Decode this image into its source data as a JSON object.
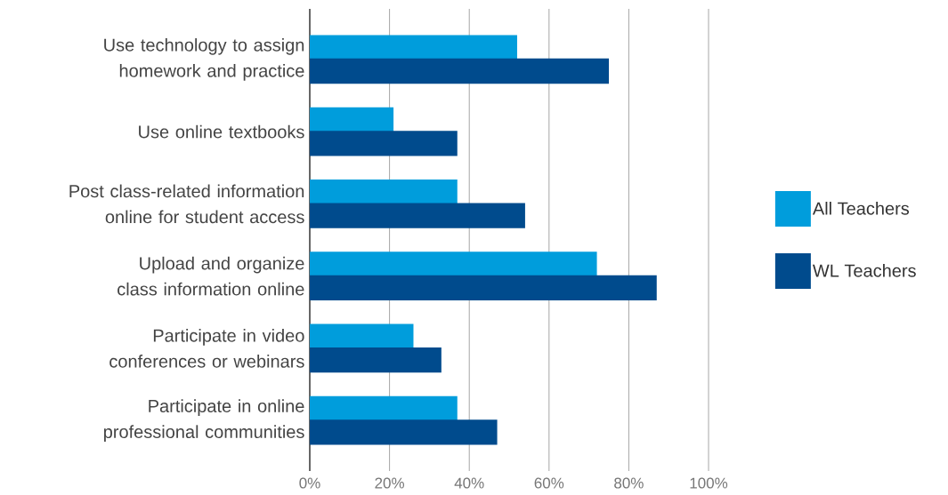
{
  "chart_data": {
    "type": "bar",
    "orientation": "horizontal",
    "categories": [
      "Use technology to assign homework and practice",
      "Use online textbooks",
      "Post class-related information online for student access",
      "Upload and organize class information online",
      "Participate in video conferences or webinars",
      "Participate in online professional communities"
    ],
    "series": [
      {
        "name": "All Teachers",
        "color": "#009ddc",
        "values": [
          52,
          21,
          37,
          72,
          26,
          37
        ]
      },
      {
        "name": "WL Teachers",
        "color": "#004b8d",
        "values": [
          75,
          37,
          54,
          87,
          33,
          47
        ]
      }
    ],
    "xlim": [
      0,
      100
    ],
    "xticks": [
      {
        "value": 0,
        "label": "0%"
      },
      {
        "value": 20,
        "label": "20%"
      },
      {
        "value": 40,
        "label": "40%"
      },
      {
        "value": 60,
        "label": "60%"
      },
      {
        "value": 80,
        "label": "80%"
      },
      {
        "value": 100,
        "label": "100%"
      }
    ],
    "grid": "x",
    "legend": "right"
  }
}
